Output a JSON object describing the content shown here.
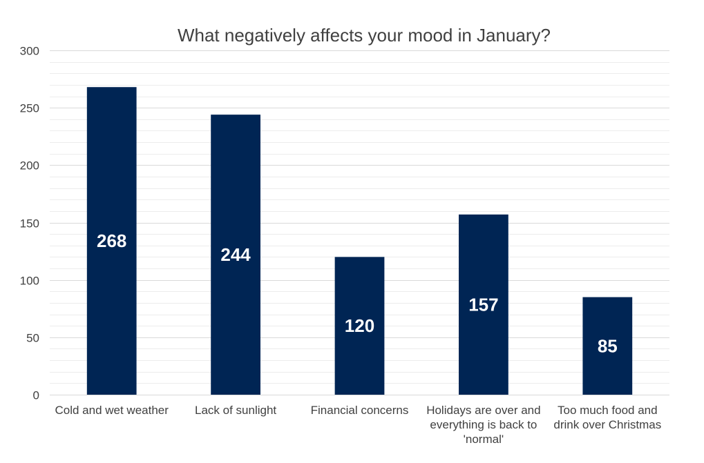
{
  "chart_data": {
    "type": "bar",
    "title": "What negatively affects your mood in January?",
    "xlabel": "",
    "ylabel": "",
    "categories": [
      "Cold and wet weather",
      "Lack of sunlight",
      "Financial concerns",
      "Holidays are over and everything is back to 'normal'",
      "Too much food and drink over Christmas"
    ],
    "category_lines": [
      [
        "Cold and wet weather"
      ],
      [
        "Lack of sunlight"
      ],
      [
        "Financial concerns"
      ],
      [
        "Holidays are over and",
        "everything is back to",
        "'normal'"
      ],
      [
        "Too much food and",
        "drink over Christmas"
      ]
    ],
    "values": [
      268,
      244,
      120,
      157,
      85
    ],
    "value_labels": [
      "268",
      "244",
      "120",
      "157",
      "85"
    ],
    "ylim": [
      0,
      300
    ],
    "yticks": [
      0,
      50,
      100,
      150,
      200,
      250,
      300
    ],
    "ytick_labels": [
      "0",
      "50",
      "100",
      "150",
      "200",
      "250",
      "300"
    ],
    "minor_grid_step": 10,
    "grid": true,
    "legend": "none",
    "bar_color": "#002554",
    "grid_color": "#d9d9d9",
    "minor_grid_color": "#ececec",
    "text_color": "#404040",
    "value_label_color": "#ffffff"
  }
}
